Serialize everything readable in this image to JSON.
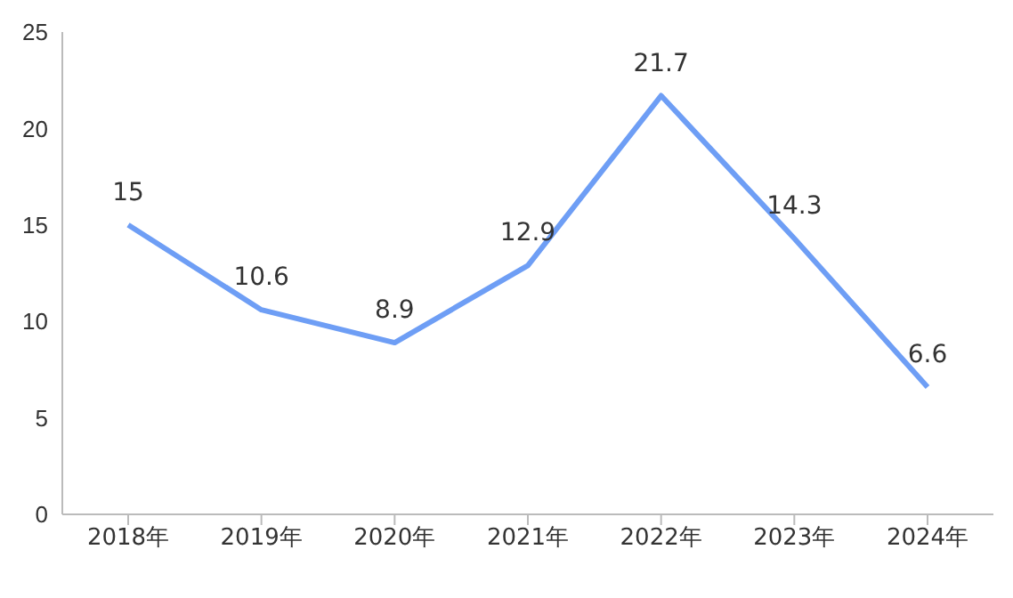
{
  "chart_data": {
    "type": "line",
    "categories": [
      "2018年",
      "2019年",
      "2020年",
      "2021年",
      "2022年",
      "2023年",
      "2024年"
    ],
    "series": [
      {
        "color": "#6e9ef5",
        "values": [
          15,
          10.6,
          8.9,
          12.9,
          21.7,
          14.3,
          6.6
        ]
      }
    ],
    "ylim": [
      0,
      25
    ],
    "yticks": [
      0,
      5,
      10,
      15,
      20,
      25
    ],
    "grid": false,
    "legend": false,
    "marker": "none",
    "line_style": "solid",
    "data_labels": true
  }
}
